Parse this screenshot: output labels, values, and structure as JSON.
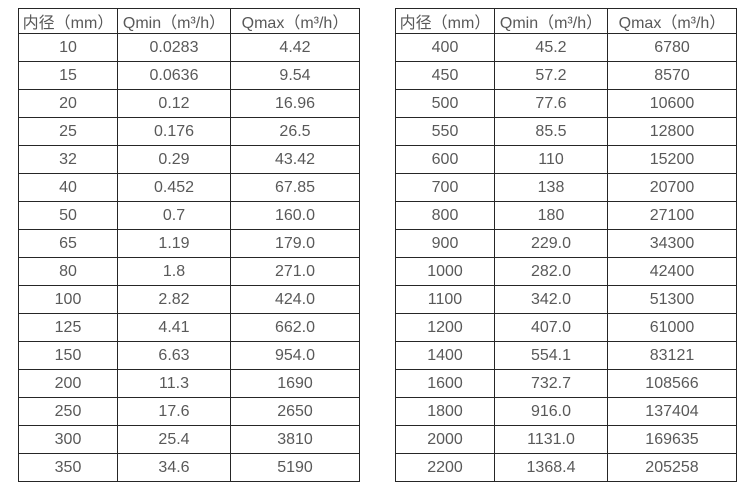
{
  "colors": {
    "background": "#ffffff",
    "border": "#262626",
    "text": "#595959"
  },
  "tables": [
    {
      "name": "small-diameter-flow-table",
      "headers": [
        "内径（mm）",
        "Qmin（m³/h）",
        "Qmax（m³/h）"
      ],
      "rows": [
        [
          "10",
          "0.0283",
          "4.42"
        ],
        [
          "15",
          "0.0636",
          "9.54"
        ],
        [
          "20",
          "0.12",
          "16.96"
        ],
        [
          "25",
          "0.176",
          "26.5"
        ],
        [
          "32",
          "0.29",
          "43.42"
        ],
        [
          "40",
          "0.452",
          "67.85"
        ],
        [
          "50",
          "0.7",
          "160.0"
        ],
        [
          "65",
          "1.19",
          "179.0"
        ],
        [
          "80",
          "1.8",
          "271.0"
        ],
        [
          "100",
          "2.82",
          "424.0"
        ],
        [
          "125",
          "4.41",
          "662.0"
        ],
        [
          "150",
          "6.63",
          "954.0"
        ],
        [
          "200",
          "11.3",
          "1690"
        ],
        [
          "250",
          "17.6",
          "2650"
        ],
        [
          "300",
          "25.4",
          "3810"
        ],
        [
          "350",
          "34.6",
          "5190"
        ]
      ]
    },
    {
      "name": "large-diameter-flow-table",
      "headers": [
        "内径（mm）",
        "Qmin（m³/h）",
        "Qmax（m³/h）"
      ],
      "rows": [
        [
          "400",
          "45.2",
          "6780"
        ],
        [
          "450",
          "57.2",
          "8570"
        ],
        [
          "500",
          "77.6",
          "10600"
        ],
        [
          "550",
          "85.5",
          "12800"
        ],
        [
          "600",
          "110",
          "15200"
        ],
        [
          "700",
          "138",
          "20700"
        ],
        [
          "800",
          "180",
          "27100"
        ],
        [
          "900",
          "229.0",
          "34300"
        ],
        [
          "1000",
          "282.0",
          "42400"
        ],
        [
          "1100",
          "342.0",
          "51300"
        ],
        [
          "1200",
          "407.0",
          "61000"
        ],
        [
          "1400",
          "554.1",
          "83121"
        ],
        [
          "1600",
          "732.7",
          "108566"
        ],
        [
          "1800",
          "916.0",
          "137404"
        ],
        [
          "2000",
          "1131.0",
          "169635"
        ],
        [
          "2200",
          "1368.4",
          "205258"
        ]
      ]
    }
  ]
}
